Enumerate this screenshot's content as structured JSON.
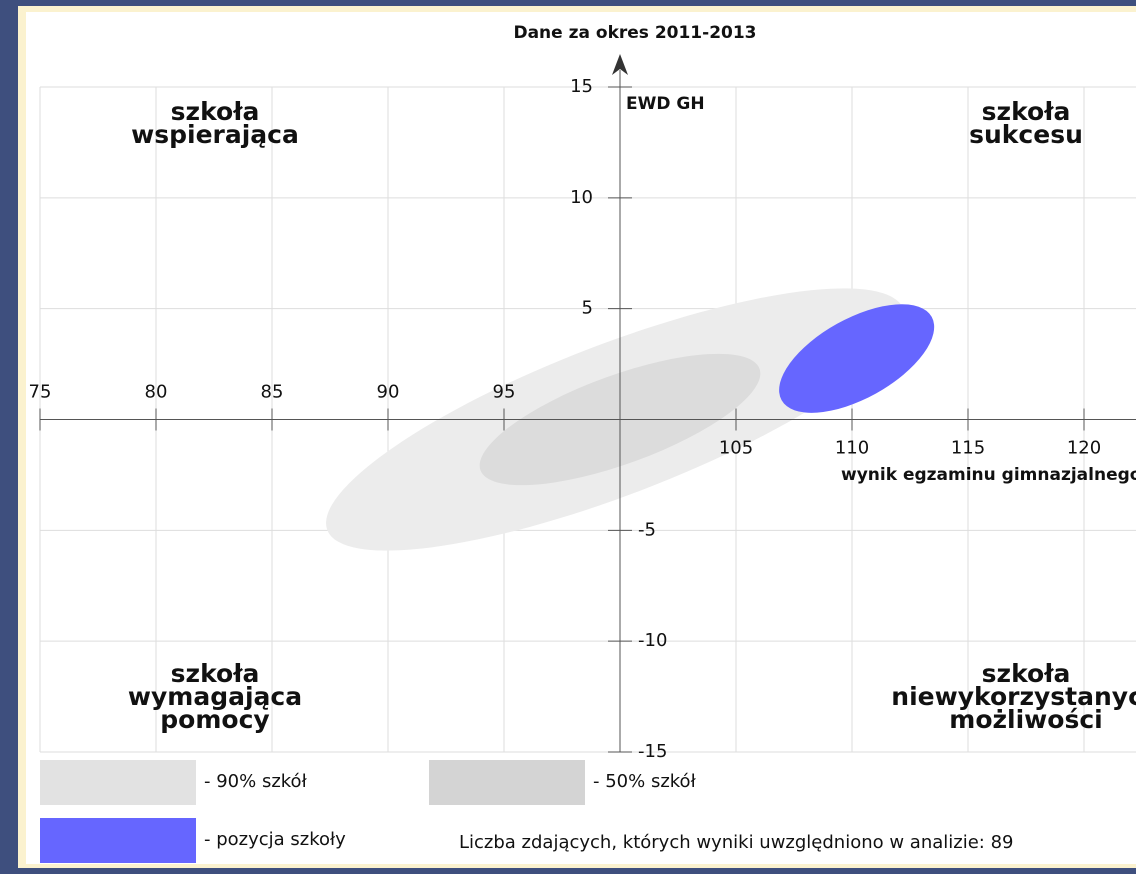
{
  "chart_data": {
    "type": "ellipse",
    "title": "Dane za okres 2011-2013",
    "y_label": "EWD GH",
    "x_label": "wynik egzaminu gimnazjalnego",
    "xlim": [
      75,
      125
    ],
    "ylim": [
      -15,
      15
    ],
    "xticks": [
      75,
      80,
      85,
      90,
      95,
      105,
      110,
      115,
      120
    ],
    "yticks": [
      15,
      10,
      5,
      -5,
      -10,
      -15
    ],
    "grid": true,
    "quadrant_labels": [
      [
        "szkoła",
        "wspierająca"
      ],
      [
        "szkoła",
        "sukcesu"
      ],
      [
        "szkoła",
        "wymagająca",
        "pomocy"
      ],
      [
        "szkoła",
        "niewykorzystanych",
        "możliwości"
      ]
    ],
    "series": [
      {
        "name": "- 90% szkół",
        "color": "#ececec",
        "cx": 99.8,
        "cy": 0,
        "rx": 13.3,
        "ry": 3.4,
        "angle": 21
      },
      {
        "name": "- 50% szkół",
        "color": "#dcdcdc",
        "cx": 100,
        "cy": 0,
        "rx": 6.4,
        "ry": 2.0,
        "angle": 20
      },
      {
        "name": "- pozycja szkoły",
        "color": "#6666ff",
        "cx": 110.2,
        "cy": 2.75,
        "rx": 3.7,
        "ry": 1.8,
        "angle": 29
      }
    ],
    "note": "Liczba zdających, których wyniki uwzględniono w analizie: 89"
  }
}
